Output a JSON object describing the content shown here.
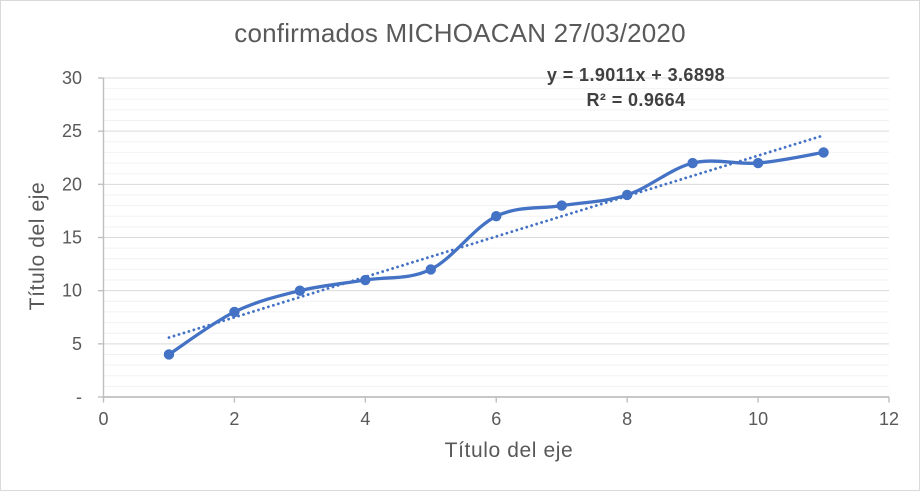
{
  "window": {
    "background": "#ffffff",
    "border_color": "#d9d9d9"
  },
  "chart_data": {
    "type": "line",
    "title": "confirmados MICHOACAN 27/03/2020",
    "xlabel": "Título del eje",
    "ylabel": "Título del eje",
    "x": [
      1,
      2,
      3,
      4,
      5,
      6,
      7,
      8,
      9,
      10,
      11
    ],
    "values": [
      4,
      8,
      10,
      11,
      12,
      17,
      18,
      19,
      22,
      22,
      23
    ],
    "xlim": [
      0,
      12
    ],
    "ylim": [
      0,
      30
    ],
    "x_tick_values": [
      0,
      2,
      4,
      6,
      8,
      10,
      12
    ],
    "x_tick_labels": [
      "0",
      "2",
      "4",
      "6",
      "8",
      "10",
      "12"
    ],
    "y_tick_values": [
      0,
      5,
      10,
      15,
      20,
      25,
      30
    ],
    "y_tick_labels": [
      "-",
      "5",
      "10",
      "15",
      "20",
      "25",
      "30"
    ],
    "grid": {
      "major_step": 5,
      "minor_step": 1,
      "vertical_gridlines": false
    },
    "legend": "none",
    "line_style": "smooth",
    "marker": "circle",
    "trendline": {
      "type": "linear",
      "slope": 1.9011,
      "intercept": 3.6898,
      "r_squared": 0.9664,
      "equation_label": "y = 1.9011x + 3.6898",
      "r2_label": "R² = 0.9664",
      "x_range": [
        1,
        11
      ],
      "style": "dotted"
    },
    "colors": {
      "series": "#4472C4",
      "trendline": "#4472C4",
      "grid_major": "#D9D9D9",
      "grid_minor": "#F2F2F2",
      "axis_line": "#BFBFBF",
      "tick_text": "#595959",
      "title_text": "#595959",
      "axis_title_text": "#595959",
      "equation_text": "#404040"
    }
  }
}
